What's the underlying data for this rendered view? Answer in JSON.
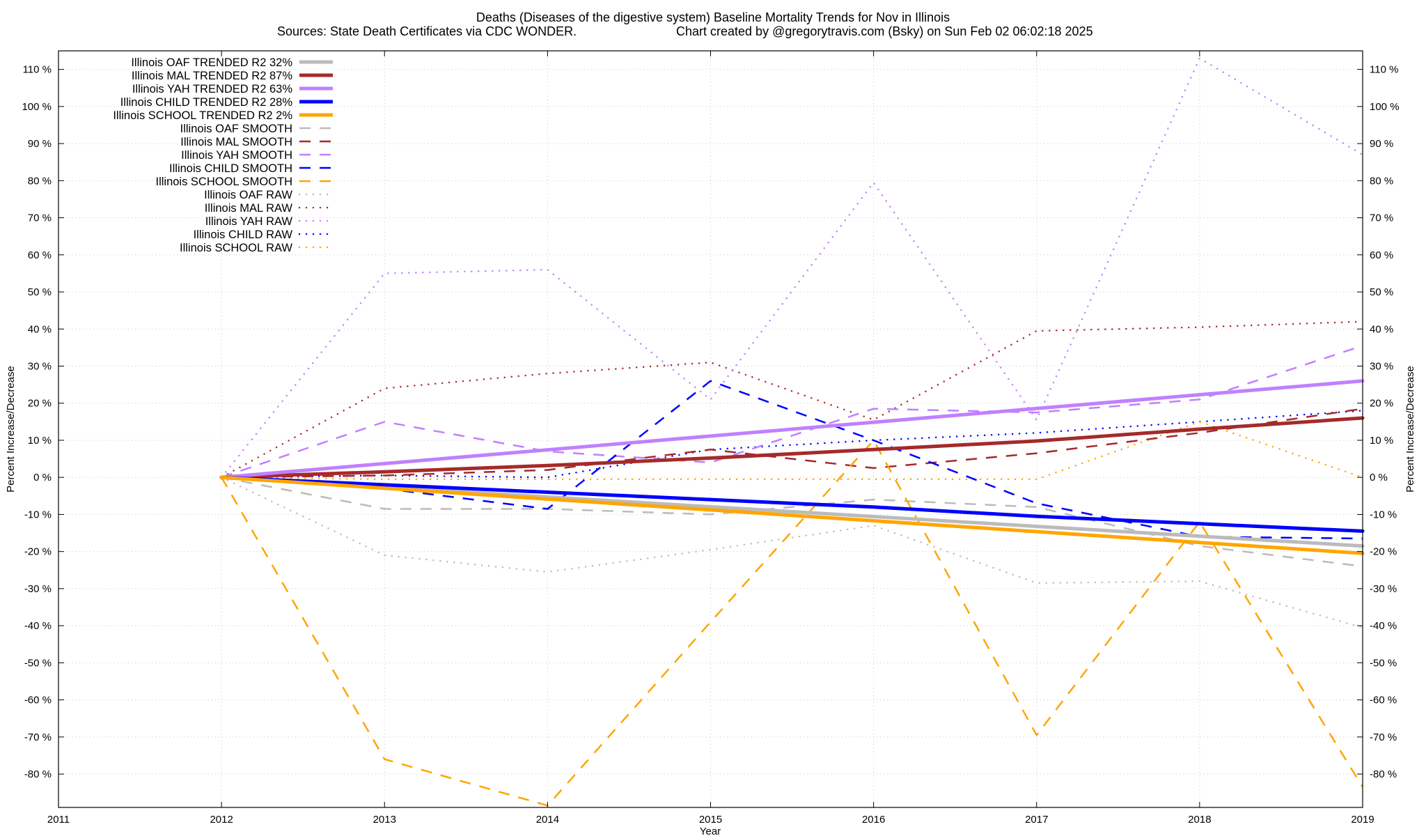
{
  "chart_data": {
    "type": "line",
    "title": "Deaths (Diseases of the digestive system)  Baseline Mortality Trends for Nov in Illinois",
    "subtitle_left": "Sources: State Death Certificates via CDC WONDER.",
    "subtitle_right": "Chart created by @gregorytravis.com (Bsky) on Sun Feb 02 06:02:18 2025",
    "xlabel": "Year",
    "ylabel_left": "Percent Increase/Decrease",
    "ylabel_right": "Percent Increase/Decrease",
    "xlim": [
      2011,
      2019
    ],
    "ylim": [
      -89,
      115
    ],
    "xticks": [
      2011,
      2012,
      2013,
      2014,
      2015,
      2016,
      2017,
      2018,
      2019
    ],
    "yticks": [
      110,
      100,
      90,
      80,
      70,
      60,
      50,
      40,
      30,
      20,
      10,
      0,
      -10,
      -20,
      -30,
      -40,
      -50,
      -60,
      -70,
      -80
    ],
    "ytick_labels": [
      "110 %",
      "100 %",
      "90 %",
      "80 %",
      "70 %",
      "60 %",
      "50 %",
      "40 %",
      "30 %",
      "20 %",
      "10 %",
      "0 %",
      "-10 %",
      "-20 %",
      "-30 %",
      "-40 %",
      "-50 %",
      "-60 %",
      "-70 %",
      "-80 %"
    ],
    "grid": true,
    "legend_position": "top-left",
    "series": [
      {
        "name": "Illinois OAF TRENDED R2  32%",
        "style": "solid",
        "color": "#bbbbbb",
        "width": 5,
        "x": [
          2012,
          2019
        ],
        "y": [
          0,
          -18.5
        ]
      },
      {
        "name": "Illinois MAL TRENDED R2  87%",
        "style": "solid",
        "color": "#a52a2a",
        "width": 5,
        "x": [
          2012,
          2013,
          2014,
          2015,
          2016,
          2017,
          2018,
          2019
        ],
        "y": [
          0,
          1.5,
          3.2,
          5.2,
          7.5,
          9.8,
          13,
          16
        ]
      },
      {
        "name": "Illinois YAH TRENDED R2  63%",
        "style": "solid",
        "color": "#c080ff",
        "width": 5,
        "x": [
          2012,
          2019
        ],
        "y": [
          0,
          26
        ]
      },
      {
        "name": "Illinois CHILD TRENDED R2  28%",
        "style": "solid",
        "color": "#0000ff",
        "width": 5,
        "x": [
          2012,
          2013,
          2014,
          2015,
          2016,
          2017,
          2018,
          2019
        ],
        "y": [
          0,
          -2,
          -4,
          -6,
          -8,
          -10.5,
          -12.5,
          -14.5
        ]
      },
      {
        "name": "Illinois SCHOOL TRENDED R2   2%",
        "style": "solid",
        "color": "#ffa500",
        "width": 5,
        "x": [
          2012,
          2019
        ],
        "y": [
          0,
          -20.5
        ]
      },
      {
        "name": "Illinois OAF SMOOTH",
        "style": "dashed",
        "color": "#bbbbbb",
        "width": 2.5,
        "x": [
          2012,
          2013,
          2014,
          2015,
          2016,
          2017,
          2018,
          2019
        ],
        "y": [
          0,
          -8.5,
          -8.5,
          -10,
          -6,
          -8,
          -18.5,
          -24
        ]
      },
      {
        "name": "Illinois MAL SMOOTH",
        "style": "dashed",
        "color": "#a52a2a",
        "width": 2.5,
        "x": [
          2012,
          2013,
          2014,
          2015,
          2016,
          2017,
          2018,
          2019
        ],
        "y": [
          0,
          0.5,
          2,
          7.5,
          2.5,
          6.5,
          12,
          18.5
        ]
      },
      {
        "name": "Illinois YAH SMOOTH",
        "style": "dashed",
        "color": "#c080ff",
        "width": 2.5,
        "x": [
          2012,
          2013,
          2014,
          2015,
          2016,
          2017,
          2018,
          2019
        ],
        "y": [
          0,
          15,
          7,
          4,
          18.5,
          17.5,
          21,
          35.5
        ]
      },
      {
        "name": "Illinois CHILD SMOOTH",
        "style": "dashed",
        "color": "#0000ff",
        "width": 2.5,
        "x": [
          2012,
          2013,
          2014,
          2015,
          2016,
          2017,
          2018,
          2019
        ],
        "y": [
          0,
          -3,
          -8.5,
          26,
          10,
          -7,
          -16,
          -16.5
        ]
      },
      {
        "name": "Illinois SCHOOL SMOOTH",
        "style": "dashed",
        "color": "#ffa500",
        "width": 2.5,
        "x": [
          2012,
          2013,
          2014,
          2015,
          2016,
          2017,
          2018,
          2019
        ],
        "y": [
          0,
          -76,
          -88.5,
          -39,
          10,
          -69.5,
          -12,
          -83.5
        ]
      },
      {
        "name": "Illinois OAF RAW",
        "style": "dotted",
        "color": "#bbbbbb",
        "width": 2.5,
        "x": [
          2012,
          2013,
          2014,
          2015,
          2016,
          2017,
          2018,
          2019
        ],
        "y": [
          0,
          -21,
          -25.5,
          -19.5,
          -13,
          -28.5,
          -28,
          -40.5
        ]
      },
      {
        "name": "Illinois MAL RAW",
        "style": "dotted",
        "color": "#a52a2a",
        "width": 2.5,
        "x": [
          2012,
          2013,
          2014,
          2015,
          2016,
          2017,
          2018,
          2019
        ],
        "y": [
          0,
          24,
          28,
          31,
          15.5,
          39.5,
          40.5,
          42
        ]
      },
      {
        "name": "Illinois YAH RAW",
        "style": "dotted",
        "color": "#c080ff",
        "width": 2.5,
        "x": [
          2012,
          2013,
          2014,
          2015,
          2016,
          2017,
          2018,
          2019
        ],
        "y": [
          0,
          55,
          56,
          21,
          79.5,
          15.5,
          113,
          87
        ]
      },
      {
        "name": "Illinois CHILD RAW",
        "style": "dotted",
        "color": "#0000ff",
        "width": 2.5,
        "x": [
          2012,
          2013,
          2014,
          2015,
          2016,
          2017,
          2018,
          2019
        ],
        "y": [
          0,
          0.5,
          0,
          7.5,
          10,
          12,
          15,
          18
        ]
      },
      {
        "name": "Illinois SCHOOL RAW",
        "style": "dotted",
        "color": "#ffa500",
        "width": 2.5,
        "x": [
          2012,
          2013,
          2014,
          2015,
          2016,
          2017,
          2018,
          2019
        ],
        "y": [
          0,
          -0.5,
          -0.5,
          -0.5,
          -0.5,
          -0.5,
          15,
          0
        ]
      }
    ]
  }
}
